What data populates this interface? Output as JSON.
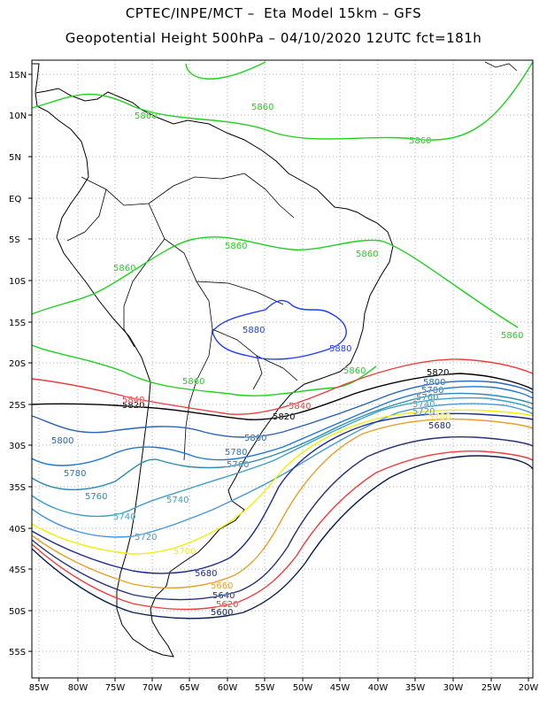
{
  "title_line1": "CPTEC/INPE/MCT –  Eta Model 15km – GFS",
  "title_line2": "Geopotential Height 500hPa – 04/10/2020 12UTC fct=181h",
  "lat_ticks": [
    "15N",
    "10N",
    "5N",
    "EQ",
    "5S",
    "10S",
    "15S",
    "20S",
    "25S",
    "30S",
    "35S",
    "40S",
    "45S",
    "50S",
    "55S"
  ],
  "lon_ticks": [
    "85W",
    "80W",
    "75W",
    "70W",
    "65W",
    "60W",
    "55W",
    "50W",
    "45W",
    "40W",
    "35W",
    "30W",
    "25W",
    "20W"
  ],
  "colors": {
    "5860": "#1ed21e",
    "5880": "#1e3cff",
    "5840": "#f03c3c",
    "5820": "#000000",
    "5800": "#2a64b4",
    "5780": "#1e78d2",
    "5760": "#2a8cb4",
    "5740": "#3ca0c8",
    "5720": "#4696dc",
    "5700": "#f0f000",
    "5680": "#1e2d8c",
    "5660": "#e6a028",
    "5640": "#283278",
    "5620": "#f03c3c",
    "5600": "#0a1e50",
    "coast": "#000000",
    "grid": "#9a9a9a"
  },
  "contour_labels": [
    {
      "text": "5860",
      "level": "5860"
    },
    {
      "text": "5860",
      "level": "5860"
    },
    {
      "text": "5860",
      "level": "5860"
    },
    {
      "text": "5860",
      "level": "5860"
    },
    {
      "text": "5860",
      "level": "5860"
    },
    {
      "text": "5860",
      "level": "5860"
    },
    {
      "text": "5860",
      "level": "5860"
    },
    {
      "text": "5860",
      "level": "5860"
    },
    {
      "text": "5860",
      "level": "5860"
    },
    {
      "text": "5880",
      "level": "5880"
    },
    {
      "text": "5880",
      "level": "5880"
    },
    {
      "text": "5820",
      "level": "5820"
    },
    {
      "text": "5820",
      "level": "5820"
    },
    {
      "text": "5820",
      "level": "5820"
    },
    {
      "text": "5840",
      "level": "5840"
    },
    {
      "text": "5840",
      "level": "5840"
    },
    {
      "text": "5800",
      "level": "5800"
    },
    {
      "text": "5800",
      "level": "5800"
    },
    {
      "text": "5800",
      "level": "5800"
    },
    {
      "text": "5780",
      "level": "5780"
    },
    {
      "text": "5780",
      "level": "5780"
    },
    {
      "text": "5780",
      "level": "5780"
    },
    {
      "text": "5760",
      "level": "5760"
    },
    {
      "text": "5760",
      "level": "5760"
    },
    {
      "text": "5760",
      "level": "5760"
    },
    {
      "text": "5740",
      "level": "5740"
    },
    {
      "text": "5740",
      "level": "5740"
    },
    {
      "text": "5740",
      "level": "5740"
    },
    {
      "text": "5720",
      "level": "5720"
    },
    {
      "text": "5720",
      "level": "5720"
    },
    {
      "text": "5700",
      "level": "5700"
    },
    {
      "text": "5700",
      "level": "5700"
    },
    {
      "text": "5680",
      "level": "5680"
    },
    {
      "text": "5680",
      "level": "5680"
    },
    {
      "text": "5660",
      "level": "5660"
    },
    {
      "text": "5640",
      "level": "5640"
    },
    {
      "text": "5620",
      "level": "5620"
    },
    {
      "text": "5600",
      "level": "5600"
    }
  ]
}
